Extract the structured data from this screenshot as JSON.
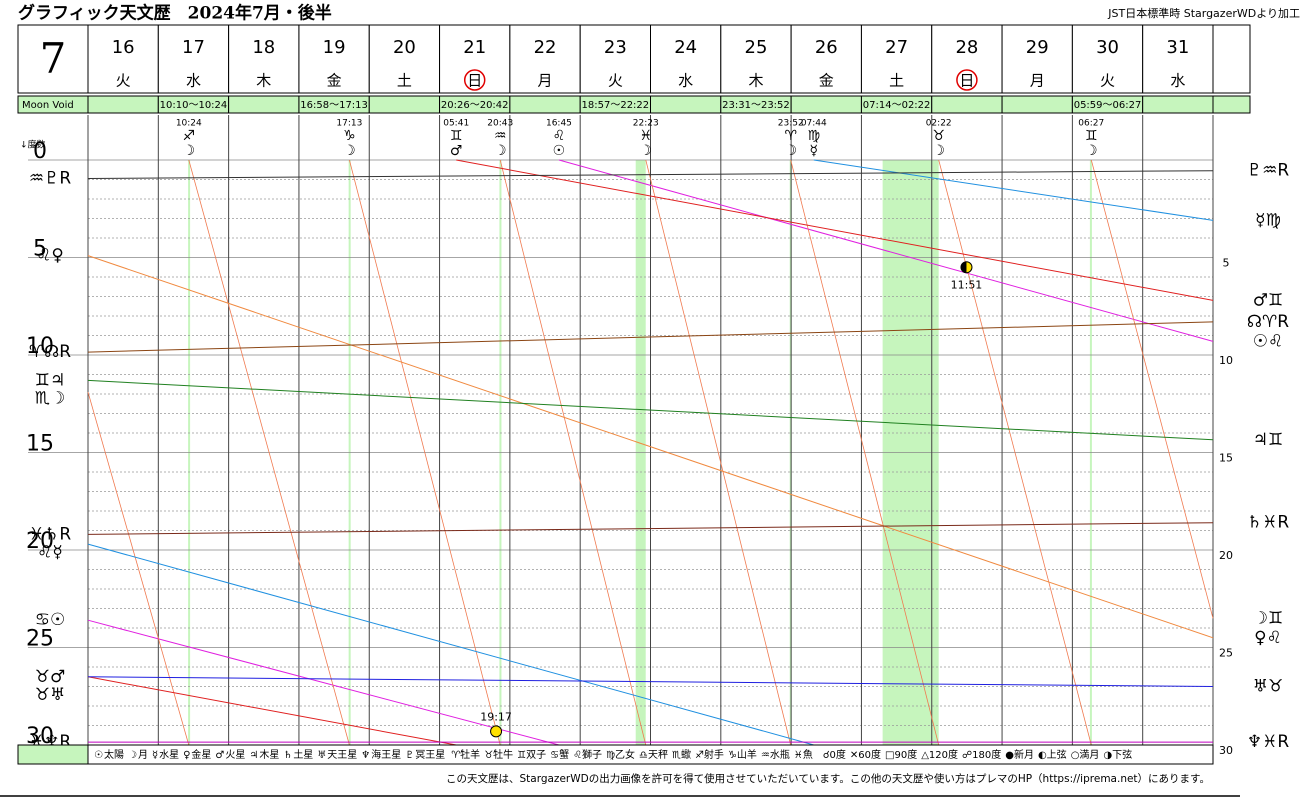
{
  "chart_data": {
    "type": "line",
    "title": "グラフィック天文歴　2024年7月・後半",
    "source": "JST日本標準時  StargazerWDより加工",
    "month": "7",
    "void_label": "Moon Void",
    "y_label": "↓度数",
    "xlim": [
      16,
      32
    ],
    "xticks": [
      16,
      17,
      18,
      19,
      20,
      21,
      22,
      23,
      24,
      25,
      26,
      27,
      28,
      29,
      30,
      31
    ],
    "weekdays": [
      {
        "label": "火",
        "color": "#000000",
        "day_color": "#000000"
      },
      {
        "label": "水",
        "color": "#000000",
        "day_color": "#000000"
      },
      {
        "label": "木",
        "color": "#000000",
        "day_color": "#000000"
      },
      {
        "label": "金",
        "color": "#000000",
        "day_color": "#000000"
      },
      {
        "label": "土",
        "color": "#1a1aff",
        "day_color": "#1a1aff"
      },
      {
        "label": "日",
        "color": "#e00000",
        "day_color": "#000000",
        "circled": true
      },
      {
        "label": "月",
        "color": "#000000",
        "day_color": "#000000"
      },
      {
        "label": "火",
        "color": "#000000",
        "day_color": "#000000"
      },
      {
        "label": "水",
        "color": "#000000",
        "day_color": "#000000"
      },
      {
        "label": "木",
        "color": "#000000",
        "day_color": "#000000"
      },
      {
        "label": "金",
        "color": "#000000",
        "day_color": "#000000"
      },
      {
        "label": "土",
        "color": "#1a1aff",
        "day_color": "#1a1aff"
      },
      {
        "label": "日",
        "color": "#e00000",
        "day_color": "#000000",
        "circled": true
      },
      {
        "label": "月",
        "color": "#000000",
        "day_color": "#000000"
      },
      {
        "label": "火",
        "color": "#000000",
        "day_color": "#000000"
      },
      {
        "label": "水",
        "color": "#000000",
        "day_color": "#000000"
      }
    ],
    "ylim": [
      0,
      30
    ],
    "yticks": [
      0,
      5,
      10,
      15,
      20,
      25,
      30
    ],
    "yminorticks": [
      1,
      2,
      3,
      4,
      6,
      7,
      8,
      9,
      11,
      12,
      13,
      14,
      16,
      17,
      18,
      19,
      21,
      22,
      23,
      24,
      26,
      27,
      28,
      29
    ],
    "moon_void": [
      {
        "day": 17,
        "label": "10:10〜10:24"
      },
      {
        "day": 19,
        "label": "16:58〜17:13"
      },
      {
        "day": 21,
        "label": "20:26〜20:42"
      },
      {
        "day": 23,
        "label": "18:57〜22:22"
      },
      {
        "day": 25,
        "label": "23:31〜23:52"
      },
      {
        "day": 27,
        "label": "07:14〜02:22"
      },
      {
        "day": 30,
        "label": "05:59〜06:27"
      }
    ],
    "void_color": "#c6f5bd",
    "ingresses": [
      {
        "day": 17,
        "time": "10:24",
        "sign": "♐",
        "planet": "☽",
        "sign_color": "#e02020",
        "planet_color": "#d4a000"
      },
      {
        "day": 19,
        "time": "17:13",
        "sign": "♑",
        "planet": "☽",
        "sign_color": "#a0522d",
        "planet_color": "#d4a000"
      },
      {
        "day": 21,
        "time": "05:41",
        "sign": "♊",
        "planet": "♂",
        "sign_color": "#208020",
        "planet_color": "#e02020"
      },
      {
        "day": 21,
        "time": "20:43",
        "sign": "♒",
        "planet": "☽",
        "sign_color": "#208020",
        "planet_color": "#d4a000"
      },
      {
        "day": 22,
        "time": "16:45",
        "sign": "♌",
        "planet": "☉",
        "sign_color": "#c00000",
        "planet_color": "#e020e0"
      },
      {
        "day": 23,
        "time": "22:23",
        "sign": "♓",
        "planet": "☽",
        "sign_color": "#20a0e0",
        "planet_color": "#d4a000"
      },
      {
        "day": 25,
        "time": "23:52",
        "sign": "♈",
        "planet": "☽",
        "sign_color": "#e02020",
        "planet_color": "#d4a000"
      },
      {
        "day": 26,
        "time": "07:44",
        "sign": "♍",
        "planet": "☿",
        "sign_color": "#8b4513",
        "planet_color": "#2090e0"
      },
      {
        "day": 28,
        "time": "02:22",
        "sign": "♉",
        "planet": "☽",
        "sign_color": "#8b4513",
        "planet_color": "#d4a000"
      },
      {
        "day": 30,
        "time": "06:27",
        "sign": "♊",
        "planet": "☽",
        "sign_color": "#208020",
        "planet_color": "#d4a000"
      }
    ],
    "series": [
      {
        "name": "太陽",
        "glyph": "☉",
        "color": "#e020e0",
        "start_label": "♋☉",
        "end_label": "☉♌",
        "x": [
          16,
          22.698,
          null,
          22.698,
          32
        ],
        "values": [
          23.6,
          30,
          null,
          0,
          9.3
        ]
      },
      {
        "name": "月",
        "glyph": "☽",
        "color": "#f07a50",
        "start_label": "♏☽",
        "end_label": "☽♊",
        "x": [
          16,
          17.433,
          null,
          17.433,
          19.717,
          null,
          19.717,
          21.863,
          null,
          21.863,
          23.933,
          null,
          23.933,
          25.994,
          null,
          25.994,
          28.099,
          null,
          28.099,
          30.269,
          null,
          30.269,
          32
        ],
        "values": [
          11.9,
          30,
          null,
          0,
          30,
          null,
          0,
          30,
          null,
          0,
          30,
          null,
          0,
          30,
          null,
          0,
          30,
          null,
          0,
          30,
          null,
          0,
          23.5
        ]
      },
      {
        "name": "水星",
        "glyph": "☿",
        "color": "#2090e0",
        "start_label": "♌☿",
        "end_label": "☿♍",
        "x": [
          16,
          26.322,
          null,
          26.322,
          32
        ],
        "values": [
          19.7,
          30,
          null,
          0,
          3.1
        ]
      },
      {
        "name": "金星",
        "glyph": "♀",
        "color": "#f08a40",
        "start_label": "♌♀",
        "end_label": "♀♌",
        "x": [
          16,
          32
        ],
        "values": [
          4.9,
          24.5
        ]
      },
      {
        "name": "火星",
        "glyph": "♂",
        "color": "#e02020",
        "start_label": "♉♂",
        "end_label": "♂♊",
        "x": [
          16,
          21.237,
          null,
          21.237,
          32
        ],
        "values": [
          26.5,
          30,
          null,
          0,
          7.2
        ]
      },
      {
        "name": "木星",
        "glyph": "♃",
        "color": "#208020",
        "start_label": "♊♃",
        "end_label": "♃♊",
        "x": [
          16,
          32
        ],
        "values": [
          11.3,
          14.35
        ]
      },
      {
        "name": "土星",
        "glyph": "♄",
        "color": "#7a2a1a",
        "start_label": "♓♄R",
        "end_label": "♄♓R",
        "x": [
          16,
          32
        ],
        "values": [
          19.2,
          18.6
        ]
      },
      {
        "name": "天王星",
        "glyph": "♅",
        "color": "#2020e0",
        "start_label": "♉♅",
        "end_label": "♅♉",
        "x": [
          16,
          32
        ],
        "values": [
          26.5,
          27.0
        ]
      },
      {
        "name": "海王星",
        "glyph": "♆",
        "color": "#c000c0",
        "start_label": "♓♆R",
        "end_label": "♆♓R",
        "x": [
          16,
          32
        ],
        "values": [
          29.85,
          29.85
        ]
      },
      {
        "name": "冥王星",
        "glyph": "♇",
        "color": "#333333",
        "start_label": "♒♇R",
        "end_label": "♇♒R",
        "x": [
          16,
          32
        ],
        "values": [
          0.95,
          0.55
        ]
      },
      {
        "glyph": "☊",
        "color": "#8b4513",
        "start_label": "♈☊R",
        "end_label": "☊♈R",
        "x": [
          16,
          32
        ],
        "values": [
          9.85,
          8.3
        ]
      }
    ],
    "phases": [
      {
        "day": 21,
        "time": "19:17",
        "value": 29.3,
        "style": "full"
      },
      {
        "day": 28,
        "time": "11:51",
        "value": 5.5,
        "style": "half"
      }
    ],
    "legend_signs": [
      "♈牡羊",
      "♉牡牛",
      "♊双子",
      "♋蟹",
      "♌獅子",
      "♍乙女",
      "♎天秤",
      "♏蠍",
      "♐射手",
      "♑山羊",
      "♒水瓶",
      "♓魚"
    ],
    "legend_aspects": [
      "☌0度",
      "✕60度",
      "□90度",
      "△120度",
      "☍180度",
      "●新月",
      "◐上弦",
      "○満月",
      "◑下弦"
    ],
    "footer": "この天文歴は、StargazerWDの出力画像を許可を得て使用させていただいています。この他の天文歴や使い方はプレマのHP（https://iprema.net）にあります。"
  }
}
